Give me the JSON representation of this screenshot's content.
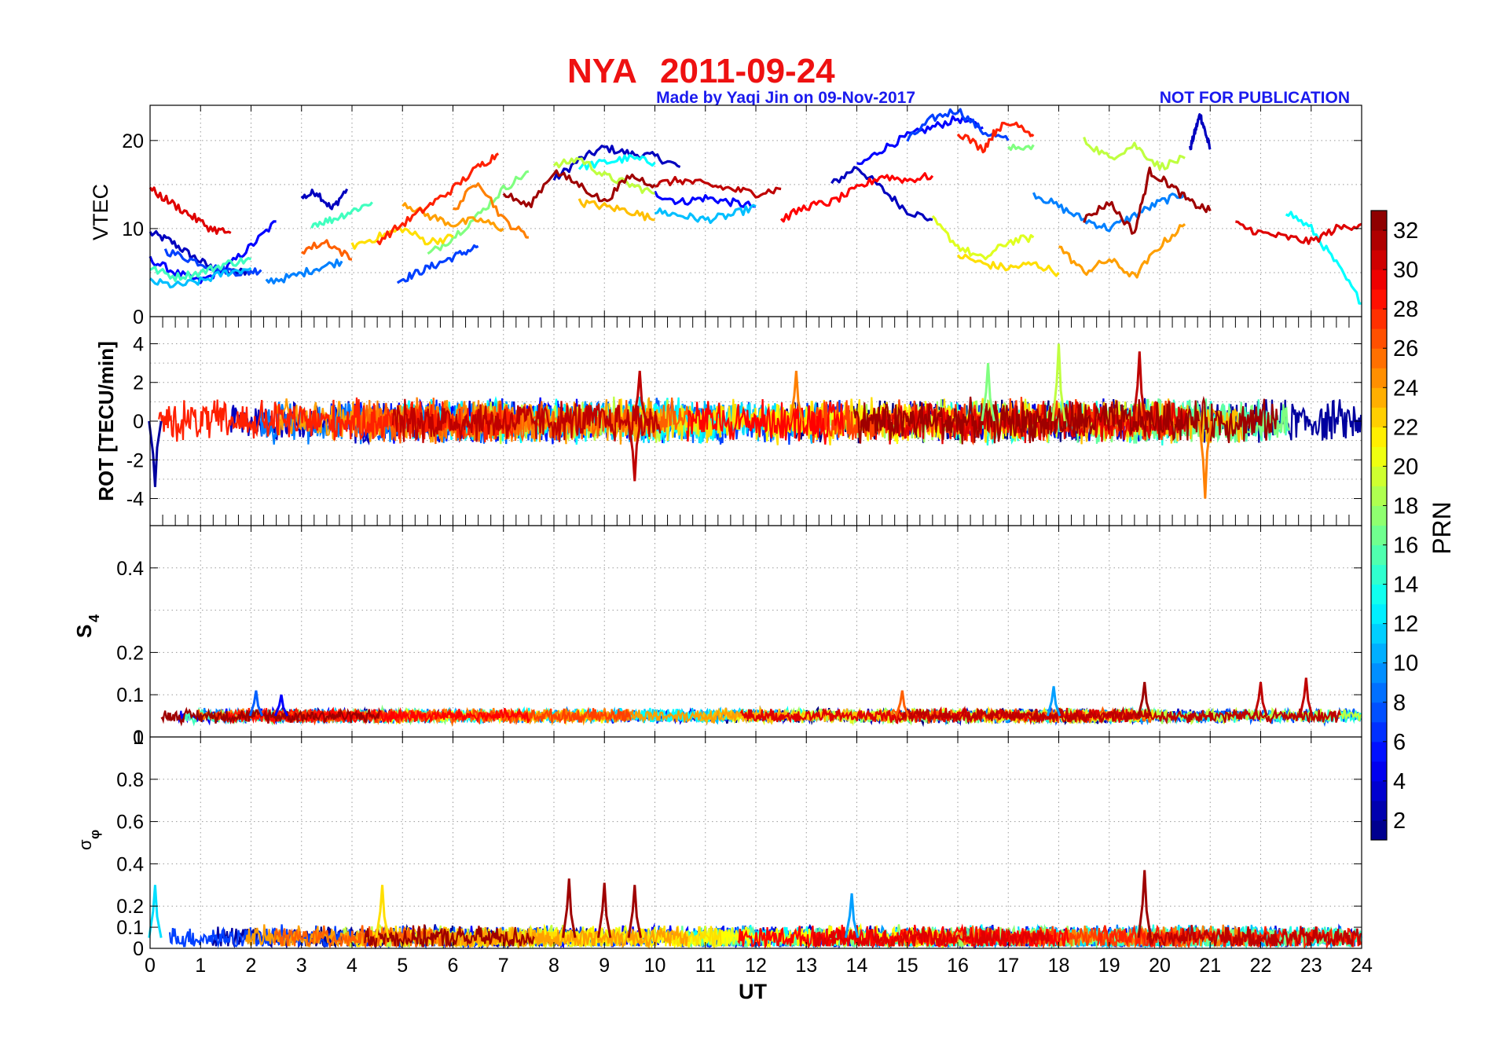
{
  "title": {
    "station": "NYA",
    "date": "2011-09-24",
    "color": "#ee1111"
  },
  "credits": {
    "made_by": "Made by Yaqi Jin on 09-Nov-2017",
    "notice": "NOT FOR PUBLICATION",
    "color": "#1a1aee"
  },
  "x_axis": {
    "label": "UT",
    "range": [
      0,
      24
    ],
    "ticks": [
      "0",
      "1",
      "2",
      "3",
      "4",
      "5",
      "6",
      "7",
      "8",
      "9",
      "10",
      "11",
      "12",
      "13",
      "14",
      "15",
      "16",
      "17",
      "18",
      "19",
      "20",
      "21",
      "22",
      "23",
      "24"
    ]
  },
  "panels": {
    "vtec": {
      "ylabel": "VTEC",
      "ylim": [
        0,
        24
      ],
      "ticks": [
        "0",
        "10",
        "20"
      ]
    },
    "rot": {
      "ylabel": "ROT [TECU/min]",
      "ylim": [
        -5.4,
        5.4
      ],
      "ticks": [
        "-4",
        "-2",
        "0",
        "2",
        "4"
      ]
    },
    "s4": {
      "ylabel_main": "S",
      "ylabel_sub": "4",
      "ylim": [
        0,
        0.5
      ],
      "ticks": [
        "0",
        "0.1",
        "0.2",
        "0.4"
      ],
      "top_overlap_label": "1"
    },
    "sigma_phi": {
      "ylabel_main": "σ",
      "ylabel_sub": "φ",
      "ylim": [
        0,
        1
      ],
      "ticks": [
        "0",
        "0.1",
        "0.2",
        "0.4",
        "0.6",
        "0.8",
        "1"
      ]
    }
  },
  "colorbar": {
    "label": "PRN",
    "range": [
      1,
      33
    ],
    "ticks": [
      "2",
      "4",
      "6",
      "8",
      "10",
      "12",
      "14",
      "16",
      "18",
      "20",
      "22",
      "24",
      "26",
      "28",
      "30",
      "32"
    ],
    "colormap": "jet"
  },
  "chart_data": [
    {
      "type": "line",
      "panel": "VTEC",
      "xlabel": "",
      "ylabel": "VTEC",
      "xlim": [
        0,
        24
      ],
      "ylim": [
        0,
        24
      ],
      "series": [
        {
          "prn": 3,
          "x": [
            0.0,
            0.4,
            0.8,
            1.2,
            1.6,
            2.0
          ],
          "values": [
            9.5,
            8.6,
            7.0,
            5.6,
            5.0,
            5.2
          ]
        },
        {
          "prn": 3,
          "x": [
            3.0,
            3.3,
            3.6,
            3.9
          ],
          "values": [
            13.5,
            14.2,
            12.2,
            14.5
          ]
        },
        {
          "prn": 3,
          "x": [
            8.0,
            8.5,
            9.0,
            9.5,
            10.0,
            10.5
          ],
          "values": [
            15.5,
            17.8,
            19.2,
            18.5,
            18.2,
            17.0
          ]
        },
        {
          "prn": 3,
          "x": [
            13.5,
            14.0,
            14.5,
            15.0,
            15.5
          ],
          "values": [
            15.0,
            17.0,
            14.5,
            12.0,
            11.0
          ]
        },
        {
          "prn": 3,
          "x": [
            20.6,
            20.7,
            20.8,
            20.9,
            21.0
          ],
          "values": [
            19.0,
            21.0,
            23.0,
            21.0,
            19.0
          ]
        },
        {
          "prn": 5,
          "x": [
            0.0,
            0.5,
            1.0,
            1.5,
            2.0,
            2.5
          ],
          "values": [
            6.5,
            5.0,
            4.0,
            5.5,
            8.0,
            10.8
          ]
        },
        {
          "prn": 5,
          "x": [
            10.0,
            10.5,
            11.0,
            11.5,
            12.0
          ],
          "values": [
            14.0,
            13.0,
            13.5,
            13.0,
            12.5
          ]
        },
        {
          "prn": 5,
          "x": [
            14.0,
            14.5,
            15.0,
            15.5,
            16.0,
            16.5
          ],
          "values": [
            17.0,
            19.0,
            20.5,
            21.5,
            22.5,
            21.5
          ]
        },
        {
          "prn": 7,
          "x": [
            0.3,
            0.8,
            1.3,
            1.8,
            2.2
          ],
          "values": [
            7.5,
            6.5,
            5.5,
            5.0,
            5.3
          ]
        },
        {
          "prn": 7,
          "x": [
            4.9,
            5.3,
            5.7,
            6.1,
            6.5
          ],
          "values": [
            4.0,
            5.0,
            6.0,
            7.0,
            8.0
          ]
        },
        {
          "prn": 7,
          "x": [
            15.0,
            15.5,
            16.0,
            16.5,
            17.0
          ],
          "values": [
            20.0,
            22.5,
            23.5,
            21.0,
            20.0
          ]
        },
        {
          "prn": 9,
          "x": [
            2.3,
            2.8,
            3.3,
            3.8
          ],
          "values": [
            4.0,
            4.5,
            5.5,
            6.3
          ]
        },
        {
          "prn": 9,
          "x": [
            17.5,
            18.0,
            18.5,
            19.0,
            19.5,
            20.0,
            20.5
          ],
          "values": [
            14.0,
            12.5,
            11.0,
            10.0,
            11.5,
            13.0,
            14.0
          ]
        },
        {
          "prn": 11,
          "x": [
            10.0,
            10.5,
            11.0,
            11.5,
            12.0
          ],
          "values": [
            12.0,
            11.5,
            11.0,
            11.5,
            12.5
          ]
        },
        {
          "prn": 11,
          "x": [
            0.0,
            0.5,
            1.0,
            1.5,
            2.0
          ],
          "values": [
            4.0,
            3.5,
            4.0,
            5.0,
            5.5
          ]
        },
        {
          "prn": 13,
          "x": [
            8.5,
            9.0,
            9.5,
            10.0
          ],
          "values": [
            17.0,
            17.5,
            18.0,
            17.5
          ]
        },
        {
          "prn": 13,
          "x": [
            22.5,
            23.0,
            23.5,
            24.0
          ],
          "values": [
            12.0,
            10.0,
            6.0,
            1.5
          ]
        },
        {
          "prn": 15,
          "x": [
            3.2,
            3.6,
            4.0,
            4.4
          ],
          "values": [
            10.5,
            11.0,
            12.0,
            13.0
          ]
        },
        {
          "prn": 15,
          "x": [
            0.0,
            0.5,
            1.0,
            1.5,
            2.0
          ],
          "values": [
            5.5,
            4.5,
            5.0,
            6.0,
            6.5
          ]
        },
        {
          "prn": 17,
          "x": [
            5.5,
            6.0,
            6.5,
            7.0,
            7.5
          ],
          "values": [
            7.0,
            9.0,
            11.5,
            14.5,
            16.5
          ]
        },
        {
          "prn": 17,
          "x": [
            17.0,
            17.5
          ],
          "values": [
            19.0,
            19.5
          ]
        },
        {
          "prn": 19,
          "x": [
            8.0,
            8.5,
            9.0,
            9.5,
            10.0
          ],
          "values": [
            17.0,
            18.0,
            16.0,
            15.0,
            14.0
          ]
        },
        {
          "prn": 19,
          "x": [
            18.5,
            19.0,
            19.5,
            20.0,
            20.5
          ],
          "values": [
            20.0,
            18.0,
            19.5,
            17.0,
            18.0
          ]
        },
        {
          "prn": 20,
          "x": [
            15.5,
            16.0,
            16.5,
            17.0,
            17.5
          ],
          "values": [
            11.0,
            8.0,
            6.5,
            8.5,
            9.0
          ]
        },
        {
          "prn": 22,
          "x": [
            4.0,
            4.5,
            5.0,
            5.5,
            6.0
          ],
          "values": [
            8.0,
            9.0,
            10.0,
            8.5,
            9.0
          ]
        },
        {
          "prn": 22,
          "x": [
            16.0,
            16.5,
            17.0,
            17.5,
            18.0
          ],
          "values": [
            7.0,
            6.0,
            5.5,
            6.0,
            5.0
          ]
        },
        {
          "prn": 23,
          "x": [
            8.5,
            9.0,
            9.5,
            10.0
          ],
          "values": [
            13.0,
            12.5,
            12.0,
            11.0
          ]
        },
        {
          "prn": 24,
          "x": [
            5.0,
            5.5,
            6.0,
            6.5,
            7.0
          ],
          "values": [
            13.0,
            11.5,
            10.5,
            11.0,
            10.0
          ]
        },
        {
          "prn": 24,
          "x": [
            18.0,
            18.5,
            19.0,
            19.5,
            20.0,
            20.5
          ],
          "values": [
            8.0,
            5.0,
            6.5,
            4.5,
            8.0,
            10.5
          ]
        },
        {
          "prn": 25,
          "x": [
            6.0,
            6.5,
            7.0,
            7.5
          ],
          "values": [
            12.0,
            15.5,
            11.0,
            9.0
          ]
        },
        {
          "prn": 26,
          "x": [
            3.0,
            3.5,
            4.0
          ],
          "values": [
            7.5,
            8.5,
            6.5
          ]
        },
        {
          "prn": 28,
          "x": [
            4.5,
            5.0,
            5.5,
            6.0,
            6.5,
            6.9
          ],
          "values": [
            8.5,
            10.5,
            12.5,
            14.5,
            17.0,
            18.5
          ]
        },
        {
          "prn": 28,
          "x": [
            16.0,
            16.5,
            16.8,
            17.2,
            17.5
          ],
          "values": [
            21.0,
            19.0,
            21.5,
            22.0,
            20.5
          ]
        },
        {
          "prn": 29,
          "x": [
            12.5,
            13.0,
            13.5,
            14.0,
            14.5,
            15.0,
            15.5
          ],
          "values": [
            11.0,
            12.5,
            13.0,
            14.5,
            16.0,
            15.5,
            16.0
          ]
        },
        {
          "prn": 30,
          "x": [
            0.0,
            0.4,
            0.8,
            1.2,
            1.6
          ],
          "values": [
            14.5,
            13.0,
            11.5,
            10.0,
            9.5
          ]
        },
        {
          "prn": 30,
          "x": [
            21.5,
            22.0,
            22.5,
            23.0,
            23.5,
            24.0
          ],
          "values": [
            10.5,
            9.5,
            9.0,
            8.5,
            10.0,
            10.5
          ]
        },
        {
          "prn": 31,
          "x": [
            10.0,
            10.5,
            11.0,
            11.5,
            12.0,
            12.5
          ],
          "values": [
            15.0,
            15.5,
            15.0,
            14.5,
            14.0,
            14.5
          ]
        },
        {
          "prn": 32,
          "x": [
            7.0,
            7.5,
            8.0,
            8.5,
            9.0,
            9.5,
            10.0
          ],
          "values": [
            14.0,
            12.5,
            16.5,
            15.0,
            13.0,
            16.0,
            15.0
          ]
        },
        {
          "prn": 32,
          "x": [
            18.5,
            19.0,
            19.5,
            19.8,
            20.2,
            20.6,
            21.0
          ],
          "values": [
            11.0,
            13.0,
            9.5,
            16.5,
            15.0,
            13.0,
            12.0
          ]
        }
      ]
    },
    {
      "type": "line",
      "panel": "ROT",
      "ylabel": "ROT [TECU/min]",
      "xlim": [
        0,
        24
      ],
      "ylim": [
        -5.4,
        5.4
      ],
      "note": "dense noisy traces for all PRNs centred on 0; largest excursions listed",
      "series": [
        {
          "prn": 2,
          "x": [
            0.1
          ],
          "values": [
            -3.4
          ]
        },
        {
          "prn": 19,
          "x": [
            18.0
          ],
          "values": [
            4.0
          ]
        },
        {
          "prn": 31,
          "x": [
            19.6
          ],
          "values": [
            3.6
          ]
        },
        {
          "prn": 31,
          "x": [
            9.6
          ],
          "values": [
            -3.1
          ]
        },
        {
          "prn": 25,
          "x": [
            20.9
          ],
          "values": [
            -4.0
          ]
        },
        {
          "prn": 31,
          "x": [
            9.7
          ],
          "values": [
            2.6
          ]
        },
        {
          "prn": 25,
          "x": [
            12.8
          ],
          "values": [
            2.6
          ]
        },
        {
          "prn": 17,
          "x": [
            16.6
          ],
          "values": [
            3.0
          ]
        }
      ]
    },
    {
      "type": "line",
      "panel": "S4",
      "ylabel": "S4",
      "xlim": [
        0,
        24
      ],
      "ylim": [
        0,
        0.5
      ],
      "note": "baseline about 0.05 for all PRNs; peaks listed",
      "series": [
        {
          "prn": 8,
          "x": [
            2.1
          ],
          "values": [
            0.11
          ]
        },
        {
          "prn": 5,
          "x": [
            2.6
          ],
          "values": [
            0.1
          ]
        },
        {
          "prn": 26,
          "x": [
            14.9
          ],
          "values": [
            0.11
          ]
        },
        {
          "prn": 10,
          "x": [
            17.9
          ],
          "values": [
            0.12
          ]
        },
        {
          "prn": 32,
          "x": [
            19.7
          ],
          "values": [
            0.13
          ]
        },
        {
          "prn": 31,
          "x": [
            22.0
          ],
          "values": [
            0.13
          ]
        },
        {
          "prn": 31,
          "x": [
            22.9
          ],
          "values": [
            0.14
          ]
        }
      ]
    },
    {
      "type": "line",
      "panel": "sigma_phi",
      "ylabel": "σφ",
      "xlim": [
        0,
        24
      ],
      "ylim": [
        0,
        1
      ],
      "note": "baseline about 0.05 for all PRNs; peaks listed",
      "series": [
        {
          "prn": 12,
          "x": [
            0.1
          ],
          "values": [
            0.3
          ]
        },
        {
          "prn": 22,
          "x": [
            4.6
          ],
          "values": [
            0.3
          ]
        },
        {
          "prn": 32,
          "x": [
            8.3
          ],
          "values": [
            0.33
          ]
        },
        {
          "prn": 32,
          "x": [
            9.0
          ],
          "values": [
            0.31
          ]
        },
        {
          "prn": 32,
          "x": [
            9.6
          ],
          "values": [
            0.3
          ]
        },
        {
          "prn": 32,
          "x": [
            19.7
          ],
          "values": [
            0.37
          ]
        },
        {
          "prn": 10,
          "x": [
            13.9
          ],
          "values": [
            0.26
          ]
        }
      ]
    }
  ]
}
